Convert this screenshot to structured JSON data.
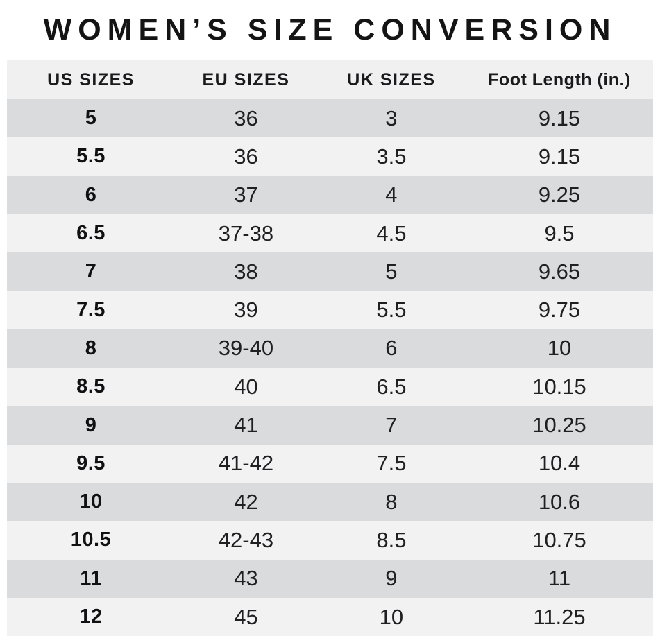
{
  "page": {
    "title": "WOMEN’S SIZE CONVERSION"
  },
  "colors": {
    "page_bg": "#ffffff",
    "header_bg": "#f0f0f1",
    "row_dark": "#dadbdd",
    "row_light": "#f2f2f3",
    "text": "#1c1c1e"
  },
  "chart_data": {
    "type": "table",
    "title": "WOMEN’S SIZE CONVERSION",
    "columns": [
      "US SIZES",
      "EU SIZES",
      "UK SIZES",
      "Foot Length (in.)"
    ],
    "rows": [
      [
        "5",
        "36",
        "3",
        "9.15"
      ],
      [
        "5.5",
        "36",
        "3.5",
        "9.15"
      ],
      [
        "6",
        "37",
        "4",
        "9.25"
      ],
      [
        "6.5",
        "37-38",
        "4.5",
        "9.5"
      ],
      [
        "7",
        "38",
        "5",
        "9.65"
      ],
      [
        "7.5",
        "39",
        "5.5",
        "9.75"
      ],
      [
        "8",
        "39-40",
        "6",
        "10"
      ],
      [
        "8.5",
        "40",
        "6.5",
        "10.15"
      ],
      [
        "9",
        "41",
        "7",
        "10.25"
      ],
      [
        "9.5",
        "41-42",
        "7.5",
        "10.4"
      ],
      [
        "10",
        "42",
        "8",
        "10.6"
      ],
      [
        "10.5",
        "42-43",
        "8.5",
        "10.75"
      ],
      [
        "11",
        "43",
        "9",
        "11"
      ],
      [
        "12",
        "45",
        "10",
        "11.25"
      ]
    ],
    "layout": {
      "row_striping": "odd-rows-dark",
      "first_column_bold": true,
      "text_align": "center"
    }
  }
}
